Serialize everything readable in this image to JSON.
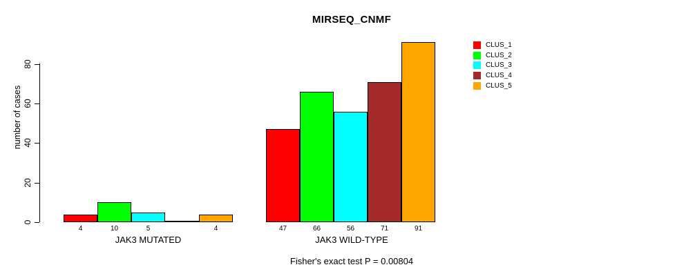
{
  "chart_data": {
    "type": "bar",
    "title": "MIRSEQ_CNMF",
    "ylabel": "number of cases",
    "xlabel": "",
    "ylim": [
      0,
      93
    ],
    "yticks": [
      0,
      20,
      40,
      60,
      80
    ],
    "grid": false,
    "legend_position": "right",
    "categories": [
      "JAK3 MUTATED",
      "JAK3 WILD-TYPE"
    ],
    "series": [
      {
        "name": "CLUS_1",
        "color": "#FF0000",
        "values": [
          4,
          47
        ]
      },
      {
        "name": "CLUS_2",
        "color": "#00FF00",
        "values": [
          10,
          66
        ]
      },
      {
        "name": "CLUS_3",
        "color": "#00FFFF",
        "values": [
          5,
          56
        ]
      },
      {
        "name": "CLUS_4",
        "color": "#A52A2A",
        "values": [
          0,
          71
        ]
      },
      {
        "name": "CLUS_5",
        "color": "#FFA500",
        "values": [
          4,
          91
        ]
      }
    ],
    "bar_value_labels": [
      [
        "4",
        "10",
        "5",
        "",
        "4"
      ],
      [
        "47",
        "66",
        "56",
        "71",
        "91"
      ]
    ],
    "annotation": "Fisher's exact test P = 0.00804",
    "colors": {
      "background": "#FFFFFF",
      "axis": "#000000",
      "bar_border": "#000000",
      "text": "#000000"
    }
  }
}
